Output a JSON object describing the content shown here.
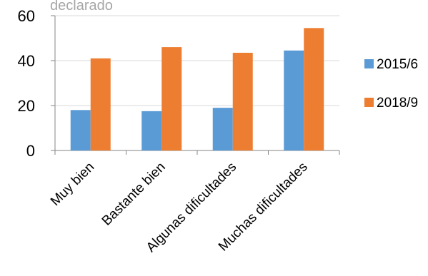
{
  "chart_data": {
    "type": "bar",
    "title": "declarado",
    "xlabel": "",
    "ylabel": "",
    "categories": [
      "Muy bien",
      "Bastante bien",
      "Algunas dificultades",
      "Muchas dificultades"
    ],
    "series": [
      {
        "name": "2015/6",
        "color": "#5b9bd5",
        "values": [
          18.0,
          17.5,
          19.0,
          44.5
        ]
      },
      {
        "name": "2018/9",
        "color": "#ed7d31",
        "values": [
          41.0,
          46.0,
          43.5,
          54.5
        ]
      }
    ],
    "ylim": [
      0,
      60
    ],
    "yticks": [
      "0",
      "20",
      "40",
      "60"
    ],
    "grid": true,
    "legend_position": "right"
  }
}
